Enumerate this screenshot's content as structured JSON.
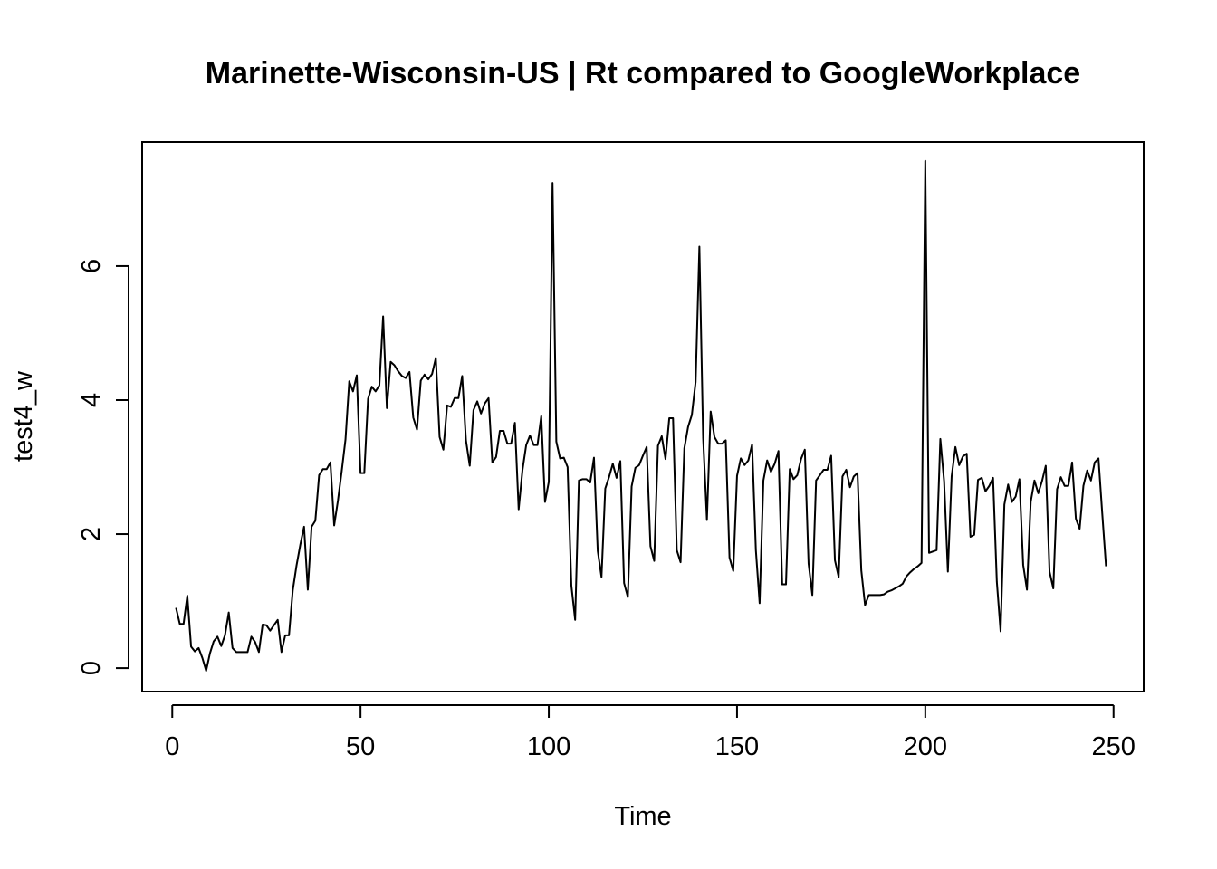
{
  "chart_data": {
    "type": "line",
    "title": "Marinette-Wisconsin-US | Rt compared to GoogleWorkplace",
    "xlabel": "Time",
    "ylabel": "test4_w",
    "xlim": [
      -8,
      258
    ],
    "ylim": [
      -0.35,
      7.85
    ],
    "xticks": [
      0,
      50,
      100,
      150,
      200,
      250
    ],
    "yticks": [
      0,
      2,
      4,
      6
    ],
    "grid": false,
    "legend": "none",
    "series": [
      {
        "color": "#000000",
        "points": [
          [
            1,
            0.9
          ],
          [
            2,
            0.66
          ],
          [
            3,
            0.66
          ],
          [
            4,
            1.08
          ],
          [
            5,
            0.32
          ],
          [
            6,
            0.25
          ],
          [
            7,
            0.3
          ],
          [
            8,
            0.15
          ],
          [
            9,
            -0.04
          ],
          [
            10,
            0.22
          ],
          [
            11,
            0.4
          ],
          [
            12,
            0.47
          ],
          [
            13,
            0.33
          ],
          [
            14,
            0.49
          ],
          [
            15,
            0.83
          ],
          [
            16,
            0.3
          ],
          [
            17,
            0.24
          ],
          [
            18,
            0.24
          ],
          [
            19,
            0.24
          ],
          [
            20,
            0.24
          ],
          [
            21,
            0.47
          ],
          [
            22,
            0.39
          ],
          [
            23,
            0.24
          ],
          [
            24,
            0.65
          ],
          [
            25,
            0.64
          ],
          [
            26,
            0.56
          ],
          [
            27,
            0.64
          ],
          [
            28,
            0.72
          ],
          [
            29,
            0.24
          ],
          [
            30,
            0.49
          ],
          [
            31,
            0.49
          ],
          [
            32,
            1.16
          ],
          [
            33,
            1.53
          ],
          [
            34,
            1.84
          ],
          [
            35,
            2.11
          ],
          [
            36,
            1.17
          ],
          [
            37,
            2.11
          ],
          [
            38,
            2.2
          ],
          [
            39,
            2.88
          ],
          [
            40,
            2.97
          ],
          [
            41,
            2.97
          ],
          [
            42,
            3.07
          ],
          [
            43,
            2.13
          ],
          [
            44,
            2.5
          ],
          [
            45,
            2.94
          ],
          [
            46,
            3.41
          ],
          [
            47,
            4.28
          ],
          [
            48,
            4.13
          ],
          [
            49,
            4.37
          ],
          [
            50,
            2.91
          ],
          [
            51,
            2.91
          ],
          [
            52,
            4.02
          ],
          [
            53,
            4.2
          ],
          [
            54,
            4.13
          ],
          [
            55,
            4.22
          ],
          [
            56,
            5.25
          ],
          [
            57,
            3.88
          ],
          [
            58,
            4.57
          ],
          [
            59,
            4.52
          ],
          [
            60,
            4.43
          ],
          [
            61,
            4.36
          ],
          [
            62,
            4.33
          ],
          [
            63,
            4.42
          ],
          [
            64,
            3.74
          ],
          [
            65,
            3.56
          ],
          [
            66,
            4.29
          ],
          [
            67,
            4.38
          ],
          [
            68,
            4.31
          ],
          [
            69,
            4.39
          ],
          [
            70,
            4.63
          ],
          [
            71,
            3.45
          ],
          [
            72,
            3.26
          ],
          [
            73,
            3.92
          ],
          [
            74,
            3.9
          ],
          [
            75,
            4.03
          ],
          [
            76,
            4.03
          ],
          [
            77,
            4.36
          ],
          [
            78,
            3.4
          ],
          [
            79,
            3.02
          ],
          [
            80,
            3.85
          ],
          [
            81,
            3.98
          ],
          [
            82,
            3.8
          ],
          [
            83,
            3.95
          ],
          [
            84,
            4.03
          ],
          [
            85,
            3.07
          ],
          [
            86,
            3.15
          ],
          [
            87,
            3.54
          ],
          [
            88,
            3.54
          ],
          [
            89,
            3.35
          ],
          [
            90,
            3.35
          ],
          [
            91,
            3.66
          ],
          [
            92,
            2.37
          ],
          [
            93,
            2.95
          ],
          [
            94,
            3.33
          ],
          [
            95,
            3.47
          ],
          [
            96,
            3.33
          ],
          [
            97,
            3.33
          ],
          [
            98,
            3.76
          ],
          [
            99,
            2.48
          ],
          [
            100,
            2.78
          ],
          [
            101,
            7.24
          ],
          [
            102,
            3.38
          ],
          [
            103,
            3.13
          ],
          [
            104,
            3.14
          ],
          [
            105,
            3.0
          ],
          [
            106,
            1.23
          ],
          [
            107,
            0.72
          ],
          [
            108,
            2.8
          ],
          [
            109,
            2.82
          ],
          [
            110,
            2.82
          ],
          [
            111,
            2.77
          ],
          [
            112,
            3.14
          ],
          [
            113,
            1.75
          ],
          [
            114,
            1.36
          ],
          [
            115,
            2.68
          ],
          [
            116,
            2.85
          ],
          [
            117,
            3.05
          ],
          [
            118,
            2.84
          ],
          [
            119,
            3.09
          ],
          [
            120,
            1.27
          ],
          [
            121,
            1.06
          ],
          [
            122,
            2.71
          ],
          [
            123,
            2.99
          ],
          [
            124,
            3.03
          ],
          [
            125,
            3.17
          ],
          [
            126,
            3.3
          ],
          [
            127,
            1.82
          ],
          [
            128,
            1.6
          ],
          [
            129,
            3.32
          ],
          [
            130,
            3.46
          ],
          [
            131,
            3.12
          ],
          [
            132,
            3.73
          ],
          [
            133,
            3.73
          ],
          [
            134,
            1.76
          ],
          [
            135,
            1.58
          ],
          [
            136,
            3.28
          ],
          [
            137,
            3.6
          ],
          [
            138,
            3.78
          ],
          [
            139,
            4.27
          ],
          [
            140,
            6.29
          ],
          [
            141,
            3.43
          ],
          [
            142,
            2.21
          ],
          [
            143,
            3.83
          ],
          [
            144,
            3.45
          ],
          [
            145,
            3.35
          ],
          [
            146,
            3.35
          ],
          [
            147,
            3.4
          ],
          [
            148,
            1.65
          ],
          [
            149,
            1.45
          ],
          [
            150,
            2.87
          ],
          [
            151,
            3.13
          ],
          [
            152,
            3.03
          ],
          [
            153,
            3.1
          ],
          [
            154,
            3.34
          ],
          [
            155,
            1.76
          ],
          [
            156,
            0.97
          ],
          [
            157,
            2.8
          ],
          [
            158,
            3.1
          ],
          [
            159,
            2.93
          ],
          [
            160,
            3.05
          ],
          [
            161,
            3.24
          ],
          [
            162,
            1.25
          ],
          [
            163,
            1.25
          ],
          [
            164,
            2.97
          ],
          [
            165,
            2.82
          ],
          [
            166,
            2.88
          ],
          [
            167,
            3.12
          ],
          [
            168,
            3.26
          ],
          [
            169,
            1.56
          ],
          [
            170,
            1.09
          ],
          [
            171,
            2.8
          ],
          [
            172,
            2.88
          ],
          [
            173,
            2.96
          ],
          [
            174,
            2.96
          ],
          [
            175,
            3.17
          ],
          [
            176,
            1.61
          ],
          [
            177,
            1.36
          ],
          [
            178,
            2.86
          ],
          [
            179,
            2.96
          ],
          [
            180,
            2.7
          ],
          [
            181,
            2.86
          ],
          [
            182,
            2.91
          ],
          [
            183,
            1.46
          ],
          [
            184,
            0.94
          ],
          [
            185,
            1.09
          ],
          [
            186,
            1.09
          ],
          [
            187,
            1.09
          ],
          [
            188,
            1.09
          ],
          [
            189,
            1.1
          ],
          [
            190,
            1.14
          ],
          [
            191,
            1.16
          ],
          [
            192,
            1.19
          ],
          [
            193,
            1.22
          ],
          [
            194,
            1.26
          ],
          [
            195,
            1.37
          ],
          [
            196,
            1.43
          ],
          [
            197,
            1.48
          ],
          [
            198,
            1.52
          ],
          [
            199,
            1.57
          ],
          [
            200,
            7.57
          ],
          [
            201,
            1.72
          ],
          [
            202,
            1.74
          ],
          [
            203,
            1.76
          ],
          [
            204,
            3.42
          ],
          [
            205,
            2.79
          ],
          [
            206,
            1.44
          ],
          [
            207,
            2.86
          ],
          [
            208,
            3.3
          ],
          [
            209,
            3.03
          ],
          [
            210,
            3.16
          ],
          [
            211,
            3.2
          ],
          [
            212,
            1.96
          ],
          [
            213,
            1.99
          ],
          [
            214,
            2.81
          ],
          [
            215,
            2.84
          ],
          [
            216,
            2.64
          ],
          [
            217,
            2.72
          ],
          [
            218,
            2.84
          ],
          [
            219,
            1.29
          ],
          [
            220,
            0.55
          ],
          [
            221,
            2.44
          ],
          [
            222,
            2.74
          ],
          [
            223,
            2.48
          ],
          [
            224,
            2.56
          ],
          [
            225,
            2.82
          ],
          [
            226,
            1.54
          ],
          [
            227,
            1.17
          ],
          [
            228,
            2.48
          ],
          [
            229,
            2.8
          ],
          [
            230,
            2.61
          ],
          [
            231,
            2.79
          ],
          [
            232,
            3.02
          ],
          [
            233,
            1.44
          ],
          [
            234,
            1.19
          ],
          [
            235,
            2.67
          ],
          [
            236,
            2.85
          ],
          [
            237,
            2.72
          ],
          [
            238,
            2.72
          ],
          [
            239,
            3.07
          ],
          [
            240,
            2.23
          ],
          [
            241,
            2.08
          ],
          [
            242,
            2.72
          ],
          [
            243,
            2.95
          ],
          [
            244,
            2.8
          ],
          [
            245,
            3.07
          ],
          [
            246,
            3.13
          ],
          [
            247,
            2.31
          ],
          [
            248,
            1.52
          ]
        ]
      }
    ]
  }
}
